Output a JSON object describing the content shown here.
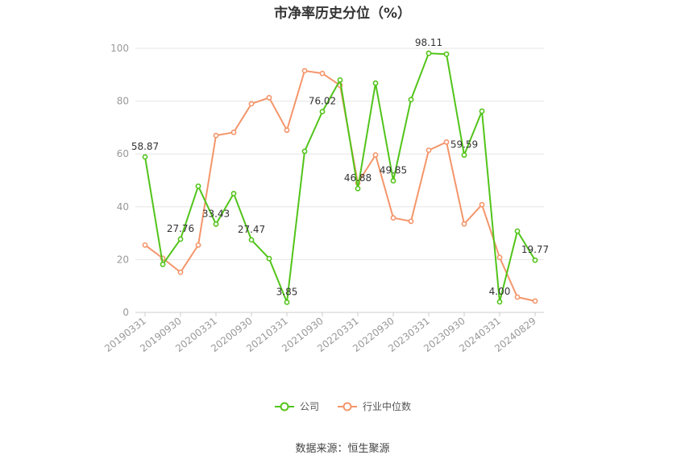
{
  "chart_data": {
    "type": "line",
    "title": "市净率历史分位（%）",
    "ylim": [
      0,
      100
    ],
    "yticks": [
      0,
      20,
      40,
      60,
      80,
      100
    ],
    "x_tick_labels": [
      "20190331",
      "20190930",
      "20200331",
      "20200930",
      "20210331",
      "20210930",
      "20220331",
      "20220930",
      "20230331",
      "20230930",
      "20240331",
      "20240829"
    ],
    "series": [
      {
        "name": "公司",
        "color": "#52c41a",
        "values": [
          58.87,
          18.2,
          27.76,
          47.8,
          33.43,
          45.0,
          27.47,
          20.4,
          3.85,
          61.0,
          76.02,
          88.0,
          46.88,
          86.8,
          49.85,
          80.6,
          98.11,
          97.8,
          59.59,
          76.2,
          4.0,
          30.8,
          19.77
        ],
        "labels": {
          "0": "58.87",
          "2": "27.76",
          "4": "33.43",
          "6": "27.47",
          "8": "3.85",
          "10": "76.02",
          "12": "46.88",
          "14": "49.85",
          "16": "98.11",
          "18": "59.59",
          "20": "4.00",
          "22": "19.77"
        }
      },
      {
        "name": "行业中位数",
        "color": "#f4956a",
        "values": [
          25.5,
          20.5,
          15.2,
          25.5,
          67.0,
          68.2,
          79.0,
          81.3,
          69.0,
          91.5,
          90.5,
          86.0,
          49.0,
          59.6,
          35.8,
          34.5,
          61.4,
          64.5,
          33.5,
          40.8,
          20.8,
          5.8,
          4.3
        ]
      }
    ],
    "legend_position": "bottom",
    "grid": true
  },
  "source": "数据来源：恒生聚源"
}
